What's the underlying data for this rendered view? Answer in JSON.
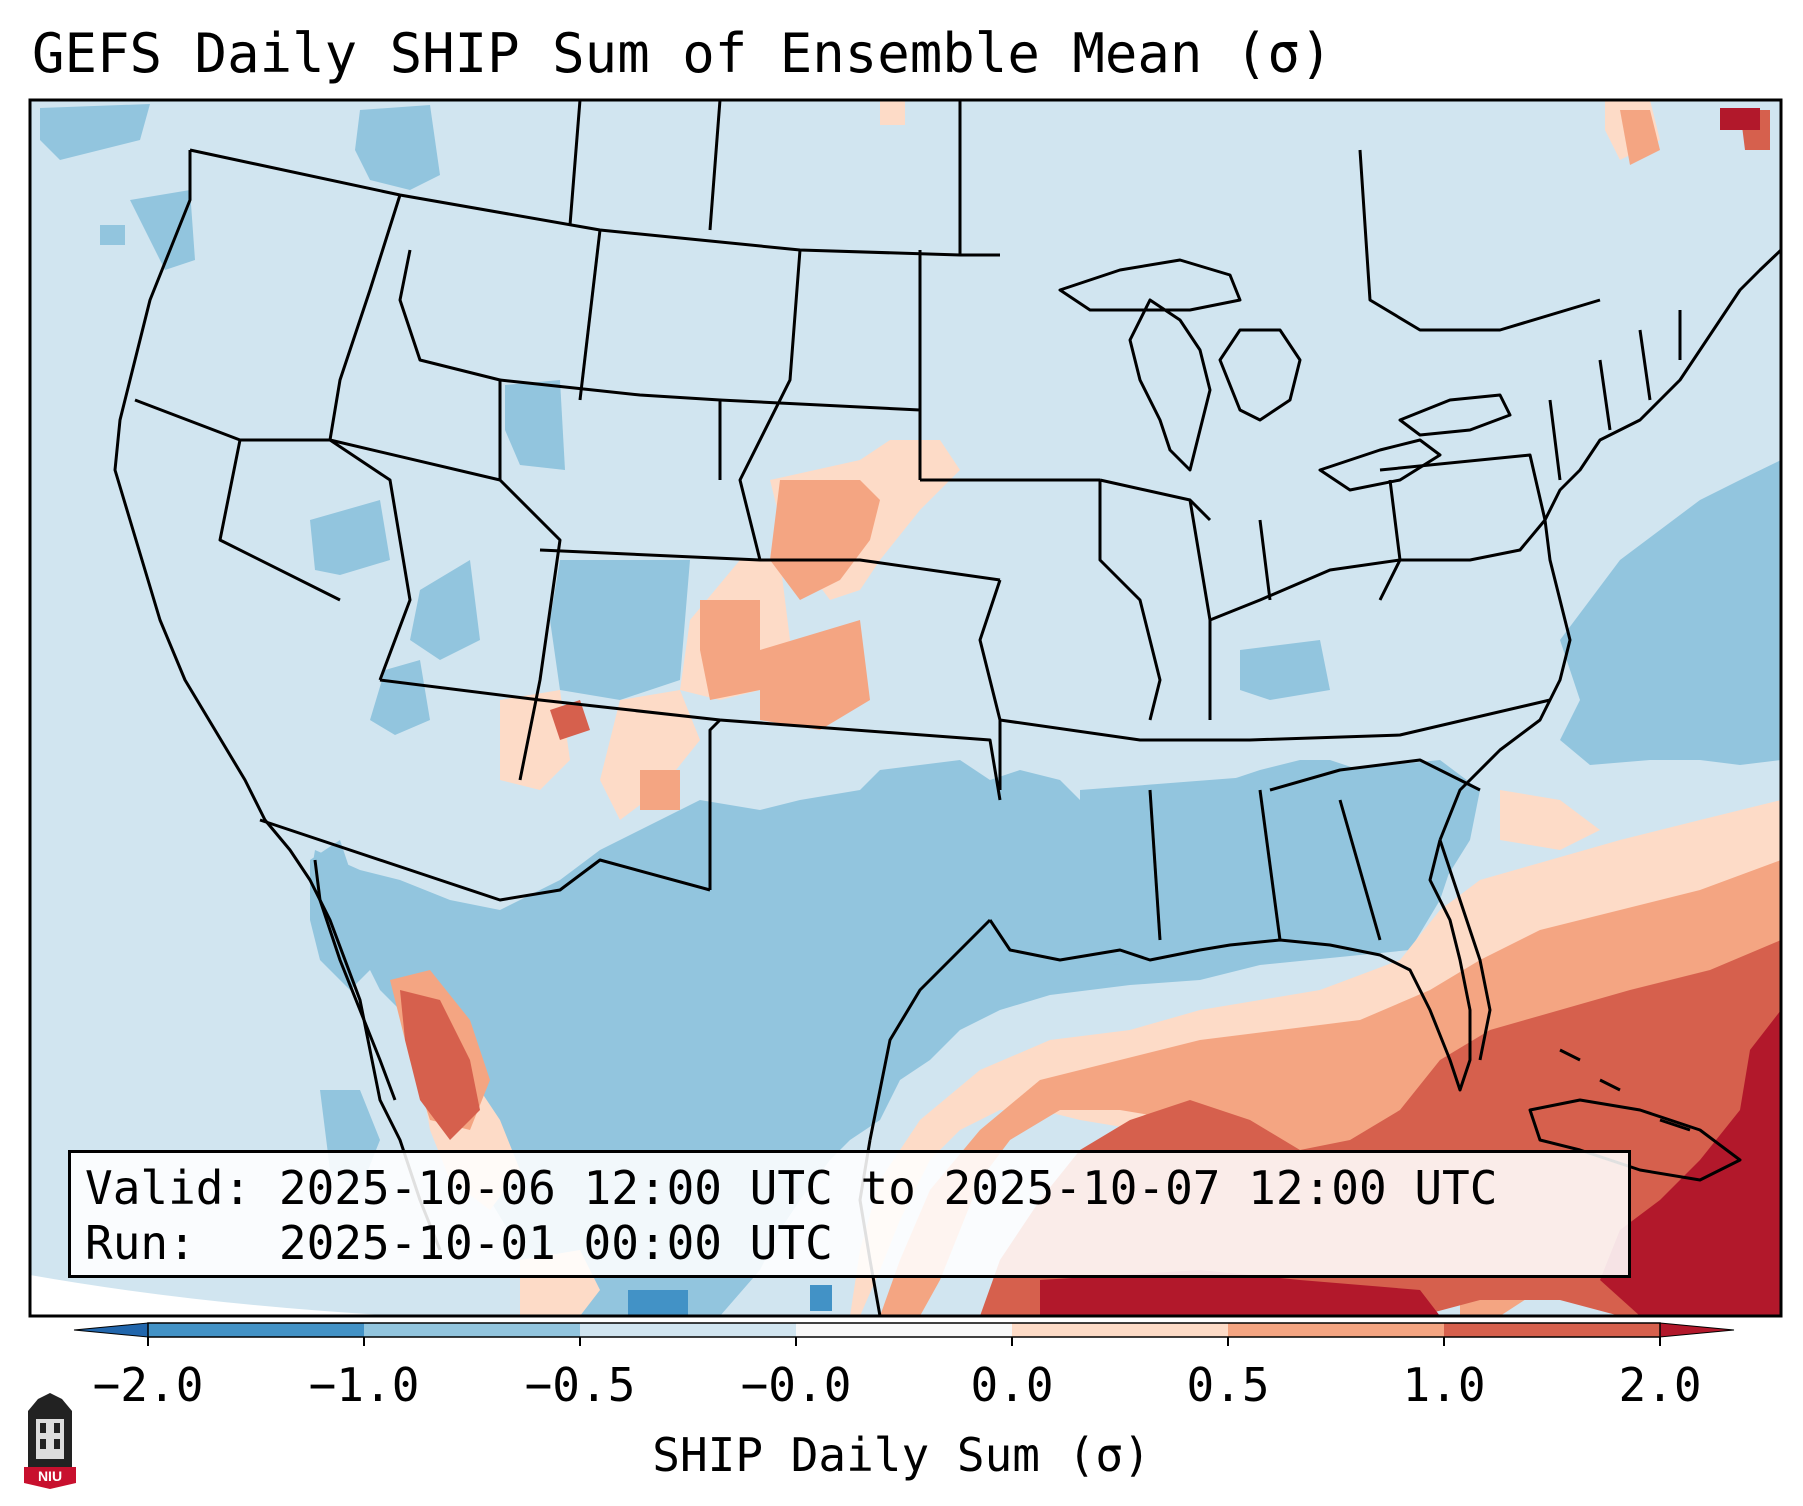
{
  "title": "GEFS Daily SHIP Sum of Ensemble Mean (σ)",
  "info": {
    "valid_label": "Valid:",
    "valid_value": "2025-10-06 12:00 UTC to 2025-10-07 12:00 UTC",
    "run_label": "Run:",
    "run_value": "2025-10-01 00:00 UTC"
  },
  "colorbar": {
    "label": "SHIP Daily Sum (σ)",
    "ticks": [
      "−2.0",
      "−1.0",
      "−0.5",
      "−0.0",
      "0.0",
      "0.5",
      "1.0",
      "2.0"
    ],
    "colors": [
      "#4292c6",
      "#92c5de",
      "#d1e5f0",
      "#f7f7f7",
      "#fddbc7",
      "#f4a582",
      "#d6604d",
      "#b2182b"
    ],
    "extend_low_color": "#2166ac",
    "extend_high_color": "#b2182b"
  },
  "map": {
    "background_color": "#d1e5f0",
    "border_color": "#000000"
  },
  "logo": {
    "text": "NIU"
  }
}
